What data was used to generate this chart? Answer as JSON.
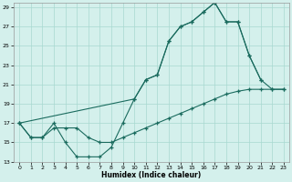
{
  "xlabel": "Humidex (Indice chaleur)",
  "bg_color": "#d4f0ec",
  "grid_color": "#a8d8d0",
  "line_color": "#1a6b5e",
  "xlim": [
    -0.5,
    23.5
  ],
  "ylim": [
    13,
    29.5
  ],
  "xticks": [
    0,
    1,
    2,
    3,
    4,
    5,
    6,
    7,
    8,
    9,
    10,
    11,
    12,
    13,
    14,
    15,
    16,
    17,
    18,
    19,
    20,
    21,
    22,
    23
  ],
  "yticks": [
    13,
    15,
    17,
    19,
    21,
    23,
    25,
    27,
    29
  ],
  "line1_x": [
    0,
    1,
    2,
    3,
    4,
    5,
    6,
    7,
    8,
    9,
    10,
    11,
    12,
    13,
    14,
    15,
    16,
    17,
    18,
    19,
    20,
    21
  ],
  "line1_y": [
    17,
    15.5,
    15.5,
    17,
    15,
    13.5,
    13.5,
    13.5,
    14.5,
    17,
    19.5,
    21.5,
    22,
    25.5,
    27,
    27.5,
    28.5,
    29.5,
    27.5,
    27.5,
    24,
    21.5
  ],
  "line2_x": [
    0,
    10,
    11,
    12,
    13,
    14,
    15,
    16,
    17,
    18,
    19,
    20,
    21,
    22,
    23
  ],
  "line2_y": [
    17,
    19.5,
    21.5,
    22,
    25.5,
    27,
    27.5,
    28.5,
    29.5,
    27.5,
    27.5,
    24,
    21.5,
    20.5,
    20.5
  ],
  "line3_x": [
    0,
    1,
    2,
    3,
    4,
    5,
    6,
    7,
    8,
    9,
    10,
    11,
    12,
    13,
    14,
    15,
    16,
    17,
    18,
    19,
    20,
    21,
    22,
    23
  ],
  "line3_y": [
    17,
    15.5,
    15.5,
    16.5,
    16.5,
    16.5,
    15.5,
    15,
    15,
    15.5,
    16,
    16.5,
    17,
    17.5,
    18,
    18.5,
    19,
    19.5,
    20,
    20.3,
    20.5,
    20.5,
    20.5,
    20.5
  ]
}
